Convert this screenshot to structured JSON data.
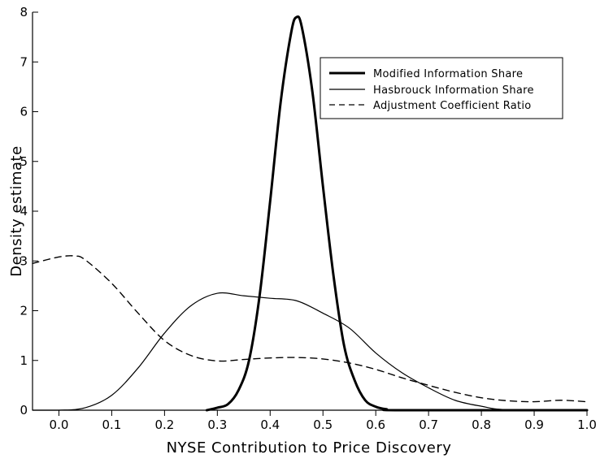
{
  "chart_data": {
    "type": "line",
    "title": "",
    "xlabel": "NYSE Contribution to Price Discovery",
    "ylabel": "Density estimate",
    "xlim": [
      -0.05,
      1.0
    ],
    "ylim": [
      0,
      8
    ],
    "x_ticks": [
      0.0,
      0.1,
      0.2,
      0.3,
      0.4,
      0.5,
      0.6,
      0.7,
      0.8,
      0.9,
      1.0
    ],
    "x_tick_labels": [
      "0.0",
      "0.1",
      "0.2",
      "0.3",
      "0.4",
      "0.5",
      "0.6",
      "0.7",
      "0.8",
      "0.9",
      "1.0"
    ],
    "y_ticks": [
      0,
      1,
      2,
      3,
      4,
      5,
      6,
      7,
      8
    ],
    "y_tick_labels": [
      "0",
      "1",
      "2",
      "3",
      "4",
      "5",
      "6",
      "7",
      "8"
    ],
    "grid": false,
    "legend_position": "top-right",
    "series": [
      {
        "name": "Modified Information Share",
        "style": "thick-solid",
        "x": [
          0.28,
          0.3,
          0.32,
          0.34,
          0.36,
          0.38,
          0.4,
          0.42,
          0.44,
          0.45,
          0.46,
          0.48,
          0.5,
          0.52,
          0.54,
          0.56,
          0.58,
          0.6,
          0.62,
          0.65,
          1.0
        ],
        "y": [
          0.0,
          0.05,
          0.12,
          0.4,
          1.0,
          2.3,
          4.2,
          6.2,
          7.6,
          7.9,
          7.7,
          6.4,
          4.5,
          2.7,
          1.3,
          0.6,
          0.2,
          0.07,
          0.02,
          0.0,
          0.0
        ]
      },
      {
        "name": "Hasbrouck Information Share",
        "style": "thin-solid",
        "x": [
          -0.05,
          0.0,
          0.05,
          0.1,
          0.15,
          0.2,
          0.25,
          0.3,
          0.35,
          0.4,
          0.45,
          0.5,
          0.55,
          0.6,
          0.65,
          0.7,
          0.75,
          0.8,
          0.85,
          1.0
        ],
        "y": [
          0.0,
          0.0,
          0.05,
          0.3,
          0.85,
          1.55,
          2.1,
          2.35,
          2.3,
          2.25,
          2.2,
          1.95,
          1.65,
          1.15,
          0.75,
          0.45,
          0.2,
          0.08,
          0.01,
          0.0
        ]
      },
      {
        "name": "Adjustment Coefficient Ratio",
        "style": "dashed",
        "x": [
          -0.05,
          0.0,
          0.03,
          0.05,
          0.1,
          0.15,
          0.2,
          0.25,
          0.3,
          0.35,
          0.4,
          0.45,
          0.5,
          0.55,
          0.6,
          0.65,
          0.7,
          0.75,
          0.8,
          0.85,
          0.9,
          0.95,
          1.0
        ],
        "y": [
          2.95,
          3.08,
          3.1,
          3.02,
          2.55,
          1.95,
          1.4,
          1.1,
          0.99,
          1.02,
          1.05,
          1.06,
          1.03,
          0.95,
          0.82,
          0.65,
          0.5,
          0.36,
          0.25,
          0.19,
          0.17,
          0.2,
          0.17
        ]
      }
    ]
  }
}
